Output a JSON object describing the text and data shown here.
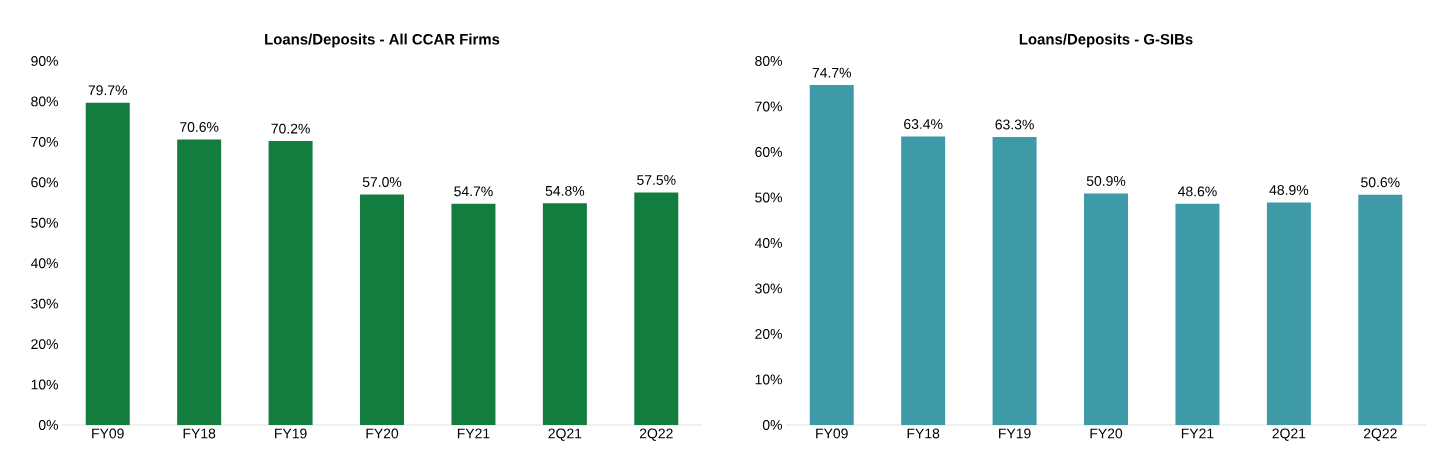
{
  "chart_data": [
    {
      "type": "bar",
      "title": "Loans/Deposits - All CCAR Firms",
      "categories": [
        "FY09",
        "FY18",
        "FY19",
        "FY20",
        "FY21",
        "2Q21",
        "2Q22"
      ],
      "values": [
        79.7,
        70.6,
        70.2,
        57.0,
        54.7,
        54.8,
        57.5
      ],
      "value_labels": [
        "79.7%",
        "70.6%",
        "70.2%",
        "57.0%",
        "54.7%",
        "54.8%",
        "57.5%"
      ],
      "color": "#127d3e",
      "ylim": [
        0,
        90
      ],
      "yticks": [
        {
          "value": 0,
          "label": "0%"
        },
        {
          "value": 10,
          "label": "10%"
        },
        {
          "value": 20,
          "label": "20%"
        },
        {
          "value": 30,
          "label": "30%"
        },
        {
          "value": 40,
          "label": "40%"
        },
        {
          "value": 50,
          "label": "50%"
        },
        {
          "value": 60,
          "label": "60%"
        },
        {
          "value": 70,
          "label": "70%"
        },
        {
          "value": 80,
          "label": "80%"
        },
        {
          "value": 90,
          "label": "90%"
        }
      ],
      "grid": false
    },
    {
      "type": "bar",
      "title": "Loans/Deposits - G-SIBs",
      "categories": [
        "FY09",
        "FY18",
        "FY19",
        "FY20",
        "FY21",
        "2Q21",
        "2Q22"
      ],
      "values": [
        74.7,
        63.4,
        63.3,
        50.9,
        48.6,
        48.9,
        50.6
      ],
      "value_labels": [
        "74.7%",
        "63.4%",
        "63.3%",
        "50.9%",
        "48.6%",
        "48.9%",
        "50.6%"
      ],
      "color": "#3f9aa8",
      "ylim": [
        0,
        80
      ],
      "yticks": [
        {
          "value": 0,
          "label": "0%"
        },
        {
          "value": 10,
          "label": "10%"
        },
        {
          "value": 20,
          "label": "20%"
        },
        {
          "value": 30,
          "label": "30%"
        },
        {
          "value": 40,
          "label": "40%"
        },
        {
          "value": 50,
          "label": "50%"
        },
        {
          "value": 60,
          "label": "60%"
        },
        {
          "value": 70,
          "label": "70%"
        },
        {
          "value": 80,
          "label": "80%"
        }
      ],
      "grid": false
    }
  ]
}
